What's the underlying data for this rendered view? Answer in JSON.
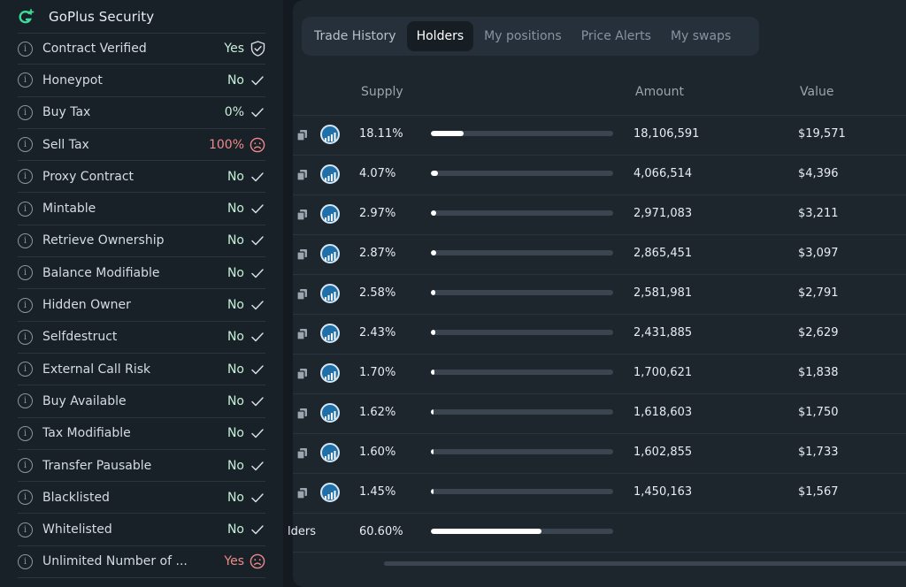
{
  "sidebar": {
    "brand": "GoPlus Security",
    "checks": [
      {
        "label": "Contract Verified",
        "value": "Yes",
        "status": "good",
        "icon": "shield-check-icon"
      },
      {
        "label": "Honeypot",
        "value": "No",
        "status": "good",
        "icon": "check-icon"
      },
      {
        "label": "Buy Tax",
        "value": "0%",
        "status": "good",
        "icon": "check-icon"
      },
      {
        "label": "Sell Tax",
        "value": "100%",
        "status": "bad",
        "icon": "sad-face-icon"
      },
      {
        "label": "Proxy Contract",
        "value": "No",
        "status": "good",
        "icon": "check-icon"
      },
      {
        "label": "Mintable",
        "value": "No",
        "status": "good",
        "icon": "check-icon"
      },
      {
        "label": "Retrieve Ownership",
        "value": "No",
        "status": "good",
        "icon": "check-icon"
      },
      {
        "label": "Balance Modifiable",
        "value": "No",
        "status": "good",
        "icon": "check-icon"
      },
      {
        "label": "Hidden Owner",
        "value": "No",
        "status": "good",
        "icon": "check-icon"
      },
      {
        "label": "Selfdestruct",
        "value": "No",
        "status": "good",
        "icon": "check-icon"
      },
      {
        "label": "External Call Risk",
        "value": "No",
        "status": "good",
        "icon": "check-icon"
      },
      {
        "label": "Buy Available",
        "value": "No",
        "status": "good",
        "icon": "check-icon"
      },
      {
        "label": "Tax Modifiable",
        "value": "No",
        "status": "good",
        "icon": "check-icon"
      },
      {
        "label": "Transfer Pausable",
        "value": "No",
        "status": "good",
        "icon": "check-icon"
      },
      {
        "label": "Blacklisted",
        "value": "No",
        "status": "good",
        "icon": "check-icon"
      },
      {
        "label": "Whitelisted",
        "value": "No",
        "status": "good",
        "icon": "check-icon"
      },
      {
        "label": "Unlimited Number of ...",
        "value": "Yes",
        "status": "bad",
        "icon": "sad-face-icon"
      }
    ]
  },
  "tabs": [
    "Trade History",
    "Holders",
    "My positions",
    "Price Alerts",
    "My swaps"
  ],
  "active_tab": "Holders",
  "table": {
    "headers": {
      "supply": "Supply",
      "amount": "Amount",
      "value": "Value"
    },
    "rows": [
      {
        "supply": "18.11%",
        "supply_pct": 18.11,
        "amount": "18,106,591",
        "value": "$19,571"
      },
      {
        "supply": "4.07%",
        "supply_pct": 4.07,
        "amount": "4,066,514",
        "value": "$4,396"
      },
      {
        "supply": "2.97%",
        "supply_pct": 2.97,
        "amount": "2,971,083",
        "value": "$3,211"
      },
      {
        "supply": "2.87%",
        "supply_pct": 2.87,
        "amount": "2,865,451",
        "value": "$3,097"
      },
      {
        "supply": "2.58%",
        "supply_pct": 2.58,
        "amount": "2,581,981",
        "value": "$2,791"
      },
      {
        "supply": "2.43%",
        "supply_pct": 2.43,
        "amount": "2,431,885",
        "value": "$2,629"
      },
      {
        "supply": "1.70%",
        "supply_pct": 1.7,
        "amount": "1,700,621",
        "value": "$1,838"
      },
      {
        "supply": "1.62%",
        "supply_pct": 1.62,
        "amount": "1,618,603",
        "value": "$1,750"
      },
      {
        "supply": "1.60%",
        "supply_pct": 1.6,
        "amount": "1,602,855",
        "value": "$1,733"
      },
      {
        "supply": "1.45%",
        "supply_pct": 1.45,
        "amount": "1,450,163",
        "value": "$1,567"
      }
    ],
    "total": {
      "label": "lders",
      "supply": "60.60%",
      "supply_pct": 60.6
    }
  },
  "colors": {
    "good": "#c7f0d6",
    "bad": "#f08a8a",
    "accent": "#3ddc97"
  }
}
